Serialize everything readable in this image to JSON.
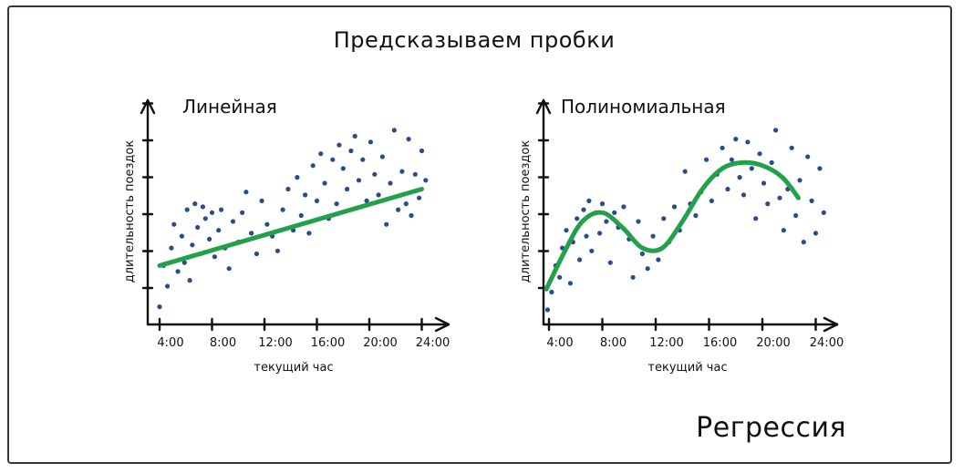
{
  "title": "Предсказываем пробки",
  "footer": "Регрессия",
  "colors": {
    "points": "#2b4c8c",
    "fit_line": "#22a04a",
    "axes": "#111111",
    "frame": "#2f3b3b"
  },
  "chart_data": [
    {
      "type": "scatter",
      "title": "Линейная",
      "xlabel": "текущий час",
      "ylabel": "длительность поездок",
      "xticks": [
        "4:00",
        "8:00",
        "12:00",
        "16:00",
        "20:00",
        "24:00"
      ],
      "xlim": [
        3,
        25
      ],
      "ylim": [
        0,
        10
      ],
      "grid": false,
      "fit": {
        "type": "linear",
        "start": [
          4,
          2.0
        ],
        "end": [
          24,
          4.6
        ]
      },
      "points": [
        [
          4.0,
          0.6
        ],
        [
          4.3,
          2.0
        ],
        [
          4.6,
          1.3
        ],
        [
          4.9,
          2.6
        ],
        [
          5.1,
          3.4
        ],
        [
          5.4,
          1.8
        ],
        [
          5.7,
          3.0
        ],
        [
          5.9,
          2.1
        ],
        [
          6.1,
          3.9
        ],
        [
          6.3,
          1.5
        ],
        [
          6.5,
          2.7
        ],
        [
          6.7,
          4.1
        ],
        [
          6.9,
          3.3
        ],
        [
          7.1,
          2.4
        ],
        [
          7.3,
          4.0
        ],
        [
          7.5,
          3.6
        ],
        [
          7.8,
          2.9
        ],
        [
          8.0,
          3.8
        ],
        [
          8.2,
          2.3
        ],
        [
          8.5,
          3.2
        ],
        [
          8.7,
          3.9
        ],
        [
          9.0,
          2.6
        ],
        [
          9.3,
          1.9
        ],
        [
          9.6,
          3.5
        ],
        [
          10.0,
          2.8
        ],
        [
          10.3,
          3.8
        ],
        [
          10.6,
          4.5
        ],
        [
          11.0,
          3.1
        ],
        [
          11.4,
          2.4
        ],
        [
          11.8,
          4.2
        ],
        [
          12.2,
          3.4
        ],
        [
          12.6,
          3.0
        ],
        [
          13.0,
          2.5
        ],
        [
          13.4,
          3.9
        ],
        [
          13.8,
          4.6
        ],
        [
          14.2,
          3.2
        ],
        [
          14.5,
          5.0
        ],
        [
          14.8,
          3.7
        ],
        [
          15.1,
          4.4
        ],
        [
          15.4,
          3.1
        ],
        [
          15.7,
          5.4
        ],
        [
          16.0,
          4.2
        ],
        [
          16.3,
          5.8
        ],
        [
          16.6,
          4.8
        ],
        [
          16.9,
          3.6
        ],
        [
          17.2,
          5.6
        ],
        [
          17.5,
          4.1
        ],
        [
          17.7,
          6.1
        ],
        [
          18.0,
          5.3
        ],
        [
          18.3,
          4.6
        ],
        [
          18.6,
          5.9
        ],
        [
          18.9,
          6.4
        ],
        [
          19.2,
          4.9
        ],
        [
          19.5,
          5.6
        ],
        [
          19.8,
          4.2
        ],
        [
          20.1,
          6.2
        ],
        [
          20.4,
          5.1
        ],
        [
          20.7,
          4.4
        ],
        [
          21.0,
          5.7
        ],
        [
          21.3,
          3.4
        ],
        [
          21.6,
          4.8
        ],
        [
          21.9,
          6.6
        ],
        [
          22.2,
          3.9
        ],
        [
          22.5,
          5.2
        ],
        [
          22.8,
          4.1
        ],
        [
          23.0,
          6.3
        ],
        [
          23.2,
          3.7
        ],
        [
          23.5,
          5.1
        ],
        [
          23.8,
          4.3
        ],
        [
          24.0,
          5.9
        ],
        [
          24.3,
          4.9
        ]
      ]
    },
    {
      "type": "scatter",
      "title": "Полиномиальная",
      "xlabel": "текущий час",
      "ylabel": "длительность поездок",
      "xticks": [
        "4:00",
        "8:00",
        "12:00",
        "16:00",
        "20:00",
        "24:00"
      ],
      "xlim": [
        3,
        25
      ],
      "ylim": [
        0,
        10
      ],
      "grid": false,
      "fit": {
        "type": "polynomial",
        "curve": [
          [
            3.8,
            1.2
          ],
          [
            5.2,
            2.5
          ],
          [
            6.5,
            3.5
          ],
          [
            8.0,
            3.8
          ],
          [
            9.5,
            3.3
          ],
          [
            11.0,
            2.6
          ],
          [
            12.5,
            2.6
          ],
          [
            14.0,
            3.5
          ],
          [
            15.5,
            4.6
          ],
          [
            17.0,
            5.3
          ],
          [
            18.5,
            5.5
          ],
          [
            20.0,
            5.4
          ],
          [
            21.5,
            5.0
          ],
          [
            22.7,
            4.3
          ]
        ]
      },
      "points": [
        [
          3.9,
          0.5
        ],
        [
          4.2,
          1.1
        ],
        [
          4.5,
          2.0
        ],
        [
          4.8,
          1.6
        ],
        [
          5.0,
          2.6
        ],
        [
          5.3,
          3.2
        ],
        [
          5.6,
          1.4
        ],
        [
          5.8,
          2.8
        ],
        [
          6.1,
          3.6
        ],
        [
          6.3,
          2.2
        ],
        [
          6.6,
          3.9
        ],
        [
          6.8,
          3.0
        ],
        [
          7.0,
          4.2
        ],
        [
          7.2,
          2.5
        ],
        [
          7.5,
          3.8
        ],
        [
          7.8,
          3.1
        ],
        [
          8.0,
          4.1
        ],
        [
          8.3,
          3.5
        ],
        [
          8.6,
          2.1
        ],
        [
          8.9,
          3.8
        ],
        [
          9.2,
          3.3
        ],
        [
          9.6,
          4.0
        ],
        [
          10.0,
          2.9
        ],
        [
          10.3,
          1.6
        ],
        [
          10.7,
          3.5
        ],
        [
          11.0,
          2.4
        ],
        [
          11.4,
          1.9
        ],
        [
          11.8,
          3.0
        ],
        [
          12.2,
          2.2
        ],
        [
          12.6,
          3.6
        ],
        [
          13.0,
          2.8
        ],
        [
          13.4,
          4.0
        ],
        [
          13.8,
          3.2
        ],
        [
          14.2,
          5.2
        ],
        [
          14.6,
          4.1
        ],
        [
          15.0,
          3.7
        ],
        [
          15.4,
          4.5
        ],
        [
          15.8,
          5.6
        ],
        [
          16.2,
          4.2
        ],
        [
          16.6,
          5.1
        ],
        [
          17.0,
          6.0
        ],
        [
          17.4,
          4.6
        ],
        [
          17.7,
          5.6
        ],
        [
          18.0,
          6.3
        ],
        [
          18.3,
          5.0
        ],
        [
          18.6,
          4.4
        ],
        [
          18.9,
          6.2
        ],
        [
          19.2,
          5.3
        ],
        [
          19.5,
          3.6
        ],
        [
          19.8,
          5.8
        ],
        [
          20.1,
          4.8
        ],
        [
          20.4,
          4.1
        ],
        [
          20.7,
          5.5
        ],
        [
          21.0,
          6.6
        ],
        [
          21.3,
          4.3
        ],
        [
          21.6,
          3.2
        ],
        [
          21.9,
          4.6
        ],
        [
          22.2,
          6.0
        ],
        [
          22.5,
          3.7
        ],
        [
          22.8,
          4.9
        ],
        [
          23.1,
          2.8
        ],
        [
          23.4,
          5.7
        ],
        [
          23.7,
          4.2
        ],
        [
          24.0,
          3.1
        ],
        [
          24.3,
          5.3
        ],
        [
          24.6,
          3.8
        ]
      ]
    }
  ]
}
